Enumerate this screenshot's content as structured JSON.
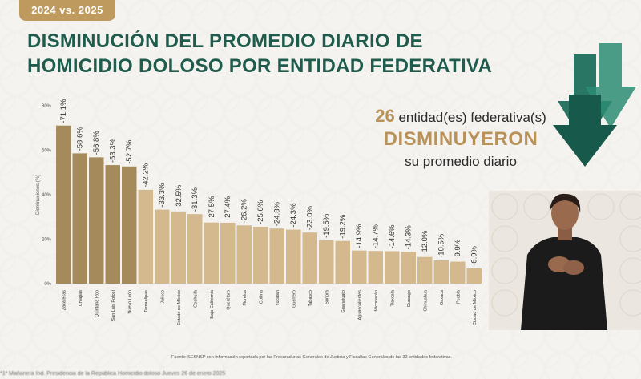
{
  "badge": "2024 vs. 2025",
  "title_line1": "DISMINUCIÓN DEL PROMEDIO DIARIO DE",
  "title_line2": "HOMICIDIO DOLOSO POR ENTIDAD FEDERATIVA",
  "callout": {
    "count": "26",
    "count_suffix": " entidad(es) federativa(s)",
    "emphasis": "DISMINUYERON",
    "tail": "su promedio diario"
  },
  "source": "Fuente: SESNSP con información reportada por las Procuradurías Generales de Justicia y Fiscalías Generales de las 32 entidades federativas.",
  "footer": "*1ª Mañanera Ind. Presidencia de la República  Homicidio doloso  Jueves 26 de enero 2025",
  "colors": {
    "title": "#1f5c4d",
    "accent": "#bf9a5e",
    "bar_dark": "#a58a5c",
    "bar_light": "#d3b98d",
    "arrow": "#1e6f5c"
  },
  "chart_data": {
    "type": "bar",
    "ylabel": "Disminuciones (%)",
    "ylim": [
      0,
      80
    ],
    "yticks": [
      "0%",
      "20%",
      "40%",
      "60%",
      "80%"
    ],
    "grid": false,
    "categories": [
      "Zacatecas",
      "Chiapas",
      "Quintana Roo",
      "San Luis Potosí",
      "Nuevo León",
      "Tamaulipas",
      "Jalisco",
      "Estado de México",
      "Coahuila",
      "Baja California",
      "Querétaro",
      "Morelos",
      "Colima",
      "Yucatán",
      "Guerrero",
      "Tabasco",
      "Sonora",
      "Guanajuato",
      "Aguascalientes",
      "Michoacán",
      "Tlaxcala",
      "Durango",
      "Chihuahua",
      "Oaxaca",
      "Puebla",
      "Ciudad de México"
    ],
    "values": [
      71.1,
      58.6,
      56.8,
      53.3,
      52.7,
      42.2,
      33.3,
      32.5,
      31.3,
      27.5,
      27.4,
      26.2,
      25.6,
      24.8,
      24.3,
      23.0,
      19.5,
      19.2,
      14.9,
      14.7,
      14.6,
      14.3,
      12.0,
      10.5,
      9.9,
      6.9
    ],
    "labels": [
      "-71.1%",
      "-58.6%",
      "-56.8%",
      "-53.3%",
      "-52.7%",
      "-42.2%",
      "-33.3%",
      "-32.5%",
      "-31.3%",
      "-27.5%",
      "-27.4%",
      "-26.2%",
      "-25.6%",
      "-24.8%",
      "-24.3%",
      "-23.0%",
      "-19.5%",
      "-19.2%",
      "-14.9%",
      "-14.7%",
      "-14.6%",
      "-14.3%",
      "-12.0%",
      "-10.5%",
      "-9.9%",
      "-6.9%"
    ],
    "highlight_count": 5
  }
}
